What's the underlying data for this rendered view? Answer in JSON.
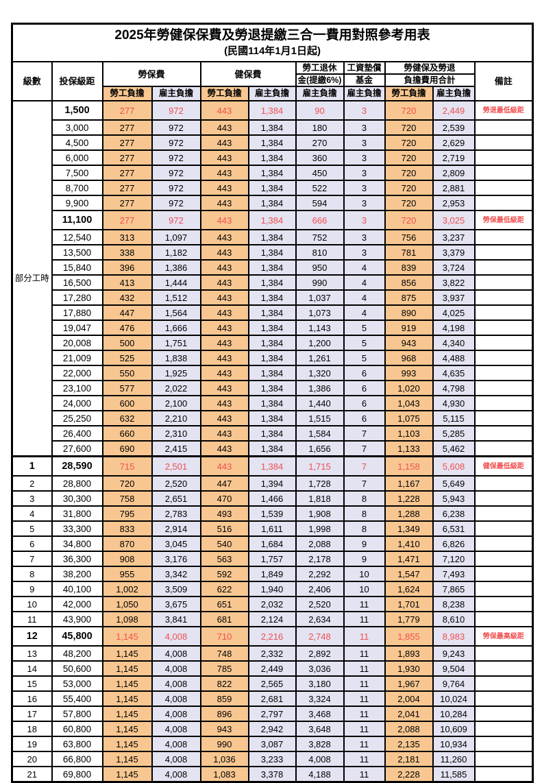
{
  "title": "2025年勞健保保費及勞退提繳三合一費用對照參考用表",
  "subtitle": "(民國114年1月1日起)",
  "colors": {
    "employee_column_bg": "#F8C791",
    "employer_column_bg": "#E3E3F2",
    "highlight_text": "#F04F4F",
    "border": "#000000"
  },
  "header": {
    "level": "級數",
    "bracket": "投保級距",
    "labor_insurance": "勞保費",
    "health_insurance": "健保費",
    "pension_line1": "勞工退休",
    "pension_line2": "金(提繳6%)",
    "wage_fund_line1": "工資墊償",
    "wage_fund_line2": "基金",
    "total_line1": "勞健保及勞退",
    "total_line2": "負擔費用合計",
    "employee_share": "勞工負擔",
    "employer_share": "雇主負擔",
    "remark": "備註"
  },
  "part_time_label": "部分工時",
  "column_keys": [
    "labor-employee",
    "labor-employer",
    "health-employee",
    "health-employer",
    "pension-employer",
    "wage-fund-employer",
    "total-employee",
    "total-employer"
  ],
  "rows": [
    {
      "level": "",
      "bracket": "1,500",
      "values": [
        "277",
        "972",
        "443",
        "1,384",
        "90",
        "3",
        "720",
        "2,449"
      ],
      "remark": "勞退最低級距",
      "highlight": true
    },
    {
      "level": "",
      "bracket": "3,000",
      "values": [
        "277",
        "972",
        "443",
        "1,384",
        "180",
        "3",
        "720",
        "2,539"
      ],
      "remark": "",
      "highlight": false
    },
    {
      "level": "",
      "bracket": "4,500",
      "values": [
        "277",
        "972",
        "443",
        "1,384",
        "270",
        "3",
        "720",
        "2,629"
      ],
      "remark": "",
      "highlight": false
    },
    {
      "level": "",
      "bracket": "6,000",
      "values": [
        "277",
        "972",
        "443",
        "1,384",
        "360",
        "3",
        "720",
        "2,719"
      ],
      "remark": "",
      "highlight": false
    },
    {
      "level": "",
      "bracket": "7,500",
      "values": [
        "277",
        "972",
        "443",
        "1,384",
        "450",
        "3",
        "720",
        "2,809"
      ],
      "remark": "",
      "highlight": false
    },
    {
      "level": "",
      "bracket": "8,700",
      "values": [
        "277",
        "972",
        "443",
        "1,384",
        "522",
        "3",
        "720",
        "2,881"
      ],
      "remark": "",
      "highlight": false
    },
    {
      "level": "",
      "bracket": "9,900",
      "values": [
        "277",
        "972",
        "443",
        "1,384",
        "594",
        "3",
        "720",
        "2,953"
      ],
      "remark": "",
      "highlight": false
    },
    {
      "level": "",
      "bracket": "11,100",
      "values": [
        "277",
        "972",
        "443",
        "1,384",
        "666",
        "3",
        "720",
        "3,025"
      ],
      "remark": "勞保最低級距",
      "highlight": true
    },
    {
      "level": "",
      "bracket": "12,540",
      "values": [
        "313",
        "1,097",
        "443",
        "1,384",
        "752",
        "3",
        "756",
        "3,237"
      ],
      "remark": "",
      "highlight": false
    },
    {
      "level": "",
      "bracket": "13,500",
      "values": [
        "338",
        "1,182",
        "443",
        "1,384",
        "810",
        "3",
        "781",
        "3,379"
      ],
      "remark": "",
      "highlight": false
    },
    {
      "level": "",
      "bracket": "15,840",
      "values": [
        "396",
        "1,386",
        "443",
        "1,384",
        "950",
        "4",
        "839",
        "3,724"
      ],
      "remark": "",
      "highlight": false
    },
    {
      "level": "",
      "bracket": "16,500",
      "values": [
        "413",
        "1,444",
        "443",
        "1,384",
        "990",
        "4",
        "856",
        "3,822"
      ],
      "remark": "",
      "highlight": false
    },
    {
      "level": "",
      "bracket": "17,280",
      "values": [
        "432",
        "1,512",
        "443",
        "1,384",
        "1,037",
        "4",
        "875",
        "3,937"
      ],
      "remark": "",
      "highlight": false
    },
    {
      "level": "",
      "bracket": "17,880",
      "values": [
        "447",
        "1,564",
        "443",
        "1,384",
        "1,073",
        "4",
        "890",
        "4,025"
      ],
      "remark": "",
      "highlight": false
    },
    {
      "level": "",
      "bracket": "19,047",
      "values": [
        "476",
        "1,666",
        "443",
        "1,384",
        "1,143",
        "5",
        "919",
        "4,198"
      ],
      "remark": "",
      "highlight": false
    },
    {
      "level": "",
      "bracket": "20,008",
      "values": [
        "500",
        "1,751",
        "443",
        "1,384",
        "1,200",
        "5",
        "943",
        "4,340"
      ],
      "remark": "",
      "highlight": false
    },
    {
      "level": "",
      "bracket": "21,009",
      "values": [
        "525",
        "1,838",
        "443",
        "1,384",
        "1,261",
        "5",
        "968",
        "4,488"
      ],
      "remark": "",
      "highlight": false
    },
    {
      "level": "",
      "bracket": "22,000",
      "values": [
        "550",
        "1,925",
        "443",
        "1,384",
        "1,320",
        "6",
        "993",
        "4,635"
      ],
      "remark": "",
      "highlight": false
    },
    {
      "level": "",
      "bracket": "23,100",
      "values": [
        "577",
        "2,022",
        "443",
        "1,384",
        "1,386",
        "6",
        "1,020",
        "4,798"
      ],
      "remark": "",
      "highlight": false
    },
    {
      "level": "",
      "bracket": "24,000",
      "values": [
        "600",
        "2,100",
        "443",
        "1,384",
        "1,440",
        "6",
        "1,043",
        "4,930"
      ],
      "remark": "",
      "highlight": false
    },
    {
      "level": "",
      "bracket": "25,250",
      "values": [
        "632",
        "2,210",
        "443",
        "1,384",
        "1,515",
        "6",
        "1,075",
        "5,115"
      ],
      "remark": "",
      "highlight": false
    },
    {
      "level": "",
      "bracket": "26,400",
      "values": [
        "660",
        "2,310",
        "443",
        "1,384",
        "1,584",
        "7",
        "1,103",
        "5,285"
      ],
      "remark": "",
      "highlight": false
    },
    {
      "level": "",
      "bracket": "27,600",
      "values": [
        "690",
        "2,415",
        "443",
        "1,384",
        "1,656",
        "7",
        "1,133",
        "5,462"
      ],
      "remark": "",
      "highlight": false
    },
    {
      "level": "1",
      "bracket": "28,590",
      "values": [
        "715",
        "2,501",
        "443",
        "1,384",
        "1,715",
        "7",
        "1,158",
        "5,608"
      ],
      "remark": "健保最低級距",
      "highlight": true
    },
    {
      "level": "2",
      "bracket": "28,800",
      "values": [
        "720",
        "2,520",
        "447",
        "1,394",
        "1,728",
        "7",
        "1,167",
        "5,649"
      ],
      "remark": "",
      "highlight": false
    },
    {
      "level": "3",
      "bracket": "30,300",
      "values": [
        "758",
        "2,651",
        "470",
        "1,466",
        "1,818",
        "8",
        "1,228",
        "5,943"
      ],
      "remark": "",
      "highlight": false
    },
    {
      "level": "4",
      "bracket": "31,800",
      "values": [
        "795",
        "2,783",
        "493",
        "1,539",
        "1,908",
        "8",
        "1,288",
        "6,238"
      ],
      "remark": "",
      "highlight": false
    },
    {
      "level": "5",
      "bracket": "33,300",
      "values": [
        "833",
        "2,914",
        "516",
        "1,611",
        "1,998",
        "8",
        "1,349",
        "6,531"
      ],
      "remark": "",
      "highlight": false
    },
    {
      "level": "6",
      "bracket": "34,800",
      "values": [
        "870",
        "3,045",
        "540",
        "1,684",
        "2,088",
        "9",
        "1,410",
        "6,826"
      ],
      "remark": "",
      "highlight": false
    },
    {
      "level": "7",
      "bracket": "36,300",
      "values": [
        "908",
        "3,176",
        "563",
        "1,757",
        "2,178",
        "9",
        "1,471",
        "7,120"
      ],
      "remark": "",
      "highlight": false
    },
    {
      "level": "8",
      "bracket": "38,200",
      "values": [
        "955",
        "3,342",
        "592",
        "1,849",
        "2,292",
        "10",
        "1,547",
        "7,493"
      ],
      "remark": "",
      "highlight": false
    },
    {
      "level": "9",
      "bracket": "40,100",
      "values": [
        "1,002",
        "3,509",
        "622",
        "1,940",
        "2,406",
        "10",
        "1,624",
        "7,865"
      ],
      "remark": "",
      "highlight": false
    },
    {
      "level": "10",
      "bracket": "42,000",
      "values": [
        "1,050",
        "3,675",
        "651",
        "2,032",
        "2,520",
        "11",
        "1,701",
        "8,238"
      ],
      "remark": "",
      "highlight": false
    },
    {
      "level": "11",
      "bracket": "43,900",
      "values": [
        "1,098",
        "3,841",
        "681",
        "2,124",
        "2,634",
        "11",
        "1,779",
        "8,610"
      ],
      "remark": "",
      "highlight": false
    },
    {
      "level": "12",
      "bracket": "45,800",
      "values": [
        "1,145",
        "4,008",
        "710",
        "2,216",
        "2,748",
        "11",
        "1,855",
        "8,983"
      ],
      "remark": "勞保最高級距",
      "highlight": true
    },
    {
      "level": "13",
      "bracket": "48,200",
      "values": [
        "1,145",
        "4,008",
        "748",
        "2,332",
        "2,892",
        "11",
        "1,893",
        "9,243"
      ],
      "remark": "",
      "highlight": false
    },
    {
      "level": "14",
      "bracket": "50,600",
      "values": [
        "1,145",
        "4,008",
        "785",
        "2,449",
        "3,036",
        "11",
        "1,930",
        "9,504"
      ],
      "remark": "",
      "highlight": false
    },
    {
      "level": "15",
      "bracket": "53,000",
      "values": [
        "1,145",
        "4,008",
        "822",
        "2,565",
        "3,180",
        "11",
        "1,967",
        "9,764"
      ],
      "remark": "",
      "highlight": false
    },
    {
      "level": "16",
      "bracket": "55,400",
      "values": [
        "1,145",
        "4,008",
        "859",
        "2,681",
        "3,324",
        "11",
        "2,004",
        "10,024"
      ],
      "remark": "",
      "highlight": false
    },
    {
      "level": "17",
      "bracket": "57,800",
      "values": [
        "1,145",
        "4,008",
        "896",
        "2,797",
        "3,468",
        "11",
        "2,041",
        "10,284"
      ],
      "remark": "",
      "highlight": false
    },
    {
      "level": "18",
      "bracket": "60,800",
      "values": [
        "1,145",
        "4,008",
        "943",
        "2,942",
        "3,648",
        "11",
        "2,088",
        "10,609"
      ],
      "remark": "",
      "highlight": false
    },
    {
      "level": "19",
      "bracket": "63,800",
      "values": [
        "1,145",
        "4,008",
        "990",
        "3,087",
        "3,828",
        "11",
        "2,135",
        "10,934"
      ],
      "remark": "",
      "highlight": false
    },
    {
      "level": "20",
      "bracket": "66,800",
      "values": [
        "1,145",
        "4,008",
        "1,036",
        "3,233",
        "4,008",
        "11",
        "2,181",
        "11,260"
      ],
      "remark": "",
      "highlight": false
    },
    {
      "level": "21",
      "bracket": "69,800",
      "values": [
        "1,145",
        "4,008",
        "1,083",
        "3,378",
        "4,188",
        "11",
        "2,228",
        "11,585"
      ],
      "remark": "",
      "highlight": false
    }
  ]
}
